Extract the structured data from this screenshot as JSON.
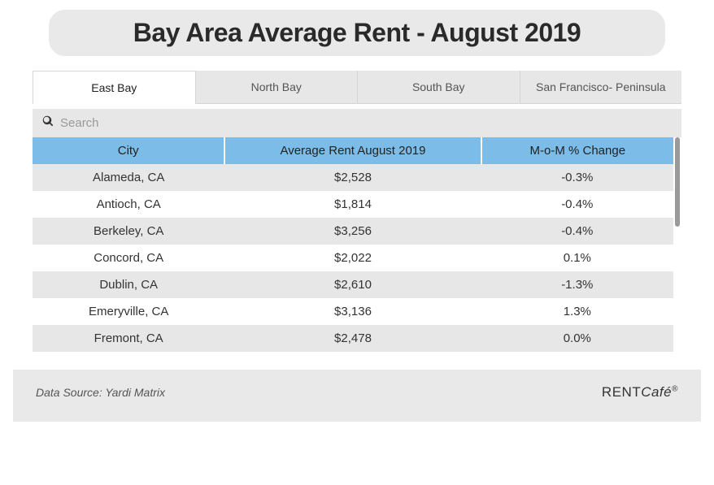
{
  "title": "Bay Area Average Rent - August 2019",
  "tabs": [
    {
      "label": "East Bay",
      "active": true
    },
    {
      "label": "North Bay",
      "active": false
    },
    {
      "label": "South Bay",
      "active": false
    },
    {
      "label": "San Francisco- Peninsula",
      "active": false
    }
  ],
  "search": {
    "placeholder": "Search"
  },
  "table": {
    "header_bg": "#7bbde8",
    "row_alt_bg": "#e7e7e7",
    "columns": [
      "City",
      "Average Rent August 2019",
      "M-o-M % Change"
    ],
    "rows": [
      [
        "Alameda, CA",
        "$2,528",
        "-0.3%"
      ],
      [
        "Antioch, CA",
        "$1,814",
        "-0.4%"
      ],
      [
        "Berkeley, CA",
        "$3,256",
        "-0.4%"
      ],
      [
        "Concord, CA",
        "$2,022",
        "0.1%"
      ],
      [
        "Dublin, CA",
        "$2,610",
        "-1.3%"
      ],
      [
        "Emeryville, CA",
        "$3,136",
        "1.3%"
      ],
      [
        "Fremont, CA",
        "$2,478",
        "0.0%"
      ]
    ]
  },
  "footer": {
    "source": "Data Source: Yardi Matrix",
    "brand_rent": "RENT",
    "brand_cafe": "Café",
    "brand_reg": "®"
  }
}
